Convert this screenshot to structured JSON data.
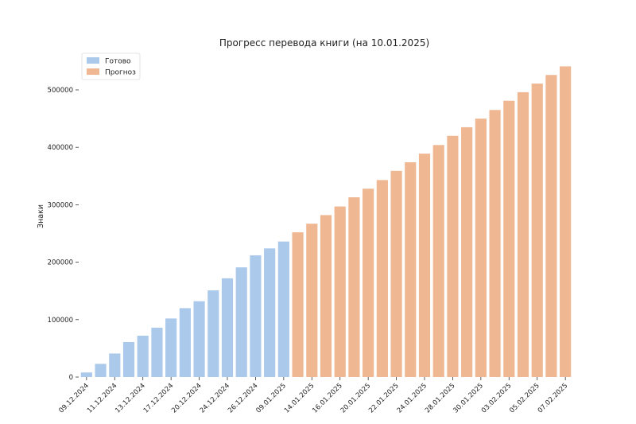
{
  "chart_data": {
    "type": "bar",
    "title": "Прогресс перевода книги (на 10.01.2025)",
    "xlabel": "",
    "ylabel": "Знаки",
    "ylim": [
      0,
      560000
    ],
    "yticks": [
      0,
      100000,
      200000,
      300000,
      400000,
      500000
    ],
    "ytick_labels": [
      "0",
      "100000",
      "200000",
      "300000",
      "400000",
      "500000"
    ],
    "grid": false,
    "legend_position": "top-left",
    "colors": {
      "done": "#abc9ea",
      "forecast": "#efb792"
    },
    "x_tick_labels": [
      "09.12.2024",
      "11.12.2024",
      "13.12.2024",
      "17.12.2024",
      "20.12.2024",
      "24.12.2024",
      "26.12.2024",
      "09.01.2025",
      "14.01.2025",
      "16.01.2025",
      "20.01.2025",
      "22.01.2025",
      "24.01.2025",
      "28.01.2025",
      "30.01.2025",
      "03.02.2025",
      "05.02.2025",
      "07.02.2025"
    ],
    "series": [
      {
        "name": "Готово",
        "values": [
          8000,
          23000,
          41000,
          61000,
          72000,
          86000,
          102000,
          120000,
          132000,
          151000,
          172000,
          191000,
          212000,
          224000,
          236000
        ]
      },
      {
        "name": "Прогноз",
        "values": [
          252000,
          267000,
          282000,
          297000,
          313000,
          328000,
          343000,
          359000,
          374000,
          389000,
          404000,
          420000,
          435000,
          450000,
          465000,
          481000,
          496000,
          511000,
          526000,
          541000
        ]
      }
    ]
  }
}
